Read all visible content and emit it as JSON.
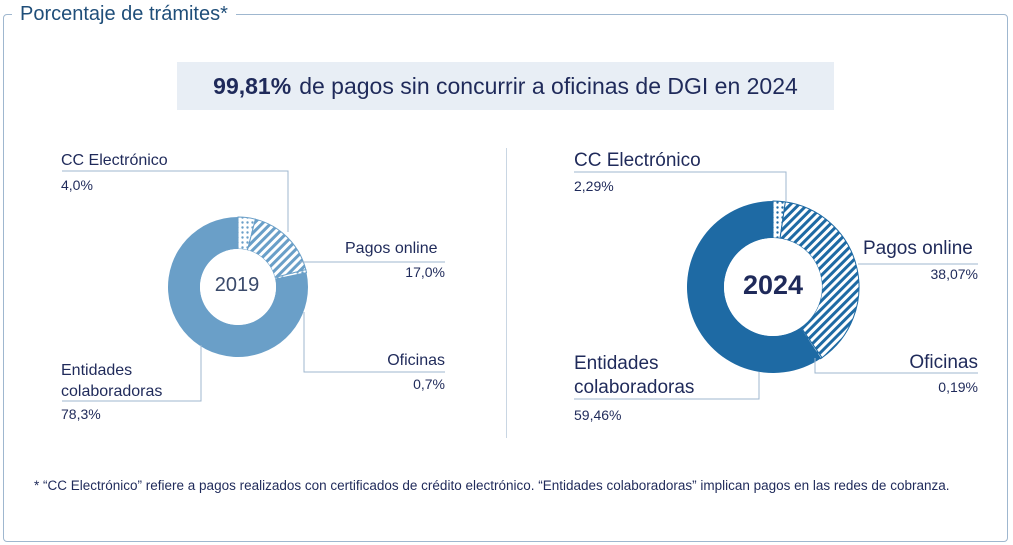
{
  "title": "Porcentaje de trámites*",
  "headline": {
    "pct": "99,81%",
    "text": "de pagos sin concurrir a oficinas de DGI en 2024"
  },
  "footnote": "*  “CC Electrónico” refiere a pagos realizados con certificados de crédito electrónico. “Entidades colaboradoras” implican pagos en las redes de cobranza.",
  "colors": {
    "c2019": "#6a9fc8",
    "c2024": "#1e6aa4",
    "text": "#1f2a5a",
    "leader": "#9fb7cf"
  },
  "chart_data": [
    {
      "type": "pie",
      "center_label": "2019",
      "categories": [
        "CC Electrónico",
        "Pagos online",
        "Oficinas",
        "Entidades colaboradoras"
      ],
      "values": [
        4.0,
        17.0,
        0.7,
        78.3
      ],
      "value_labels": [
        "4,0%",
        "17,0%",
        "0,7%",
        "78,3%"
      ],
      "patterns": [
        "dotted",
        "hatched",
        "dotted",
        "solid"
      ],
      "label_lines": [
        [
          "CC Electrónico"
        ],
        [
          "Pagos online"
        ],
        [
          "Oficinas"
        ],
        [
          "Entidades",
          "colaboradoras"
        ]
      ]
    },
    {
      "type": "pie",
      "center_label": "2024",
      "categories": [
        "CC Electrónico",
        "Pagos online",
        "Oficinas",
        "Entidades colaboradoras"
      ],
      "values": [
        2.29,
        38.07,
        0.19,
        59.46
      ],
      "value_labels": [
        "2,29%",
        "38,07%",
        "0,19%",
        "59,46%"
      ],
      "patterns": [
        "dotted",
        "hatched",
        "dotted",
        "solid"
      ],
      "label_lines": [
        [
          "CC Electrónico"
        ],
        [
          "Pagos online"
        ],
        [
          "Oficinas"
        ],
        [
          "Entidades",
          "colaboradoras"
        ]
      ]
    }
  ]
}
